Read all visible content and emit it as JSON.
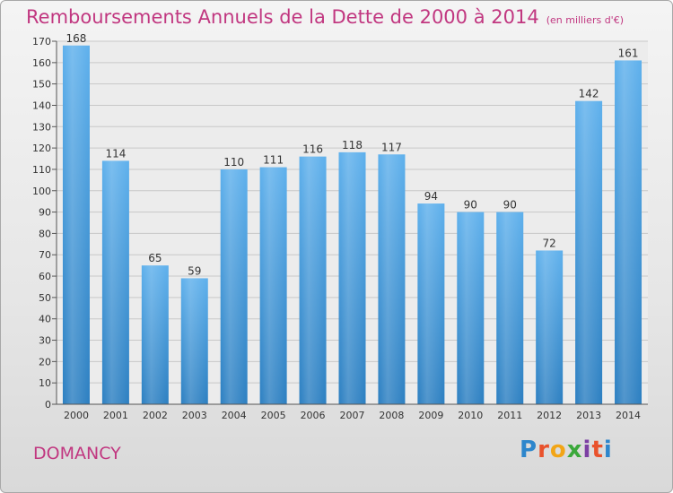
{
  "title": "Remboursements Annuels de la Dette de 2000 à 2014",
  "unit_note": "(en milliers d'€)",
  "city": "DOMANCY",
  "logo": "Proxiti",
  "colors": {
    "bar_light": "#5eb0ec",
    "bar_dark": "#2c7fc1",
    "title": "#c13780",
    "city": "#c13780",
    "grid": "#c8c8c8",
    "plot_bg": "#ececec"
  },
  "chart_data": {
    "type": "bar",
    "title": "Remboursements Annuels de la Dette de 2000 à 2014",
    "categories": [
      "2000",
      "2001",
      "2002",
      "2003",
      "2004",
      "2005",
      "2006",
      "2007",
      "2008",
      "2009",
      "2010",
      "2011",
      "2012",
      "2013",
      "2014"
    ],
    "values": [
      168,
      114,
      65,
      59,
      110,
      111,
      116,
      118,
      117,
      94,
      90,
      90,
      72,
      142,
      161
    ],
    "ylim": [
      0,
      170
    ],
    "yticks": [
      0,
      10,
      20,
      30,
      40,
      50,
      60,
      70,
      80,
      90,
      100,
      110,
      120,
      130,
      140,
      150,
      160,
      170
    ],
    "grid": true,
    "xlabel": "",
    "ylabel": ""
  }
}
